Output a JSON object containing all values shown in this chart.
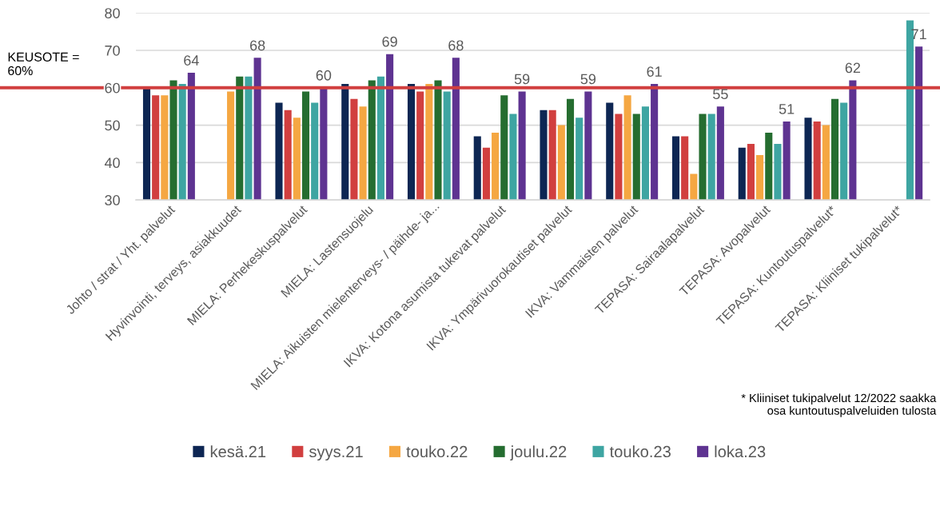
{
  "chart_data": {
    "type": "bar",
    "categories": [
      "Johto / strat / Yht. palvelut",
      "Hyvinvointi, terveys, asiakkuudet",
      "MIELA: Perhekeskuspalvelut",
      "MIELA: Lastensuojelu",
      "MIELA: Aikuisten mielenterveys- / päihde- ja...",
      "IKVA: Kotona asumista tukevat palvelut",
      "IKVA: Ympärivuorokautiset palvelut",
      "IKVA: Vammaisten palvelut",
      "TEPASA: Sairaalapalvelut",
      "TEPASA: Avopalvelut",
      "TEPASA: Kuntoutuspalvelut*",
      "TEPASA: Kliiniset tukipalvelut*"
    ],
    "series": [
      {
        "name": "kesä.21",
        "color": "#0d2653",
        "values": [
          60,
          null,
          56,
          61,
          61,
          47,
          54,
          56,
          47,
          44,
          52,
          null
        ]
      },
      {
        "name": "syys.21",
        "color": "#d13f3f",
        "values": [
          58,
          null,
          54,
          57,
          59,
          44,
          54,
          53,
          47,
          45,
          51,
          null
        ]
      },
      {
        "name": "touko.22",
        "color": "#f5a742",
        "values": [
          58,
          59,
          52,
          55,
          61,
          48,
          50,
          58,
          37,
          42,
          50,
          null
        ]
      },
      {
        "name": "joulu.22",
        "color": "#256d30",
        "values": [
          62,
          63,
          59,
          62,
          62,
          58,
          57,
          53,
          53,
          48,
          57,
          null
        ]
      },
      {
        "name": "touko.23",
        "color": "#3ea5a2",
        "values": [
          61,
          63,
          56,
          63,
          59,
          53,
          52,
          55,
          53,
          45,
          56,
          78
        ]
      },
      {
        "name": "loka.23",
        "color": "#5e3391",
        "values": [
          64,
          68,
          60,
          69,
          68,
          59,
          59,
          61,
          55,
          51,
          62,
          71
        ],
        "value_labels": [
          "64",
          "68",
          "60",
          "69",
          "68",
          "59",
          "59",
          "61",
          "55",
          "51",
          "62",
          "71"
        ]
      }
    ],
    "ylim": [
      30,
      80
    ],
    "yticks": [
      30,
      40,
      50,
      60,
      70,
      80
    ],
    "grid": "y",
    "legend": "bottom",
    "ref_lines": [
      {
        "axis": "y",
        "value": 60,
        "label": "KEUSOTE =\n60%",
        "color": "#d13f3f"
      }
    ],
    "annotations": [
      "* Kliiniset tukipalvelut 12/2022 saakka\nosa kuntoutuspalveluiden tulosta"
    ]
  }
}
